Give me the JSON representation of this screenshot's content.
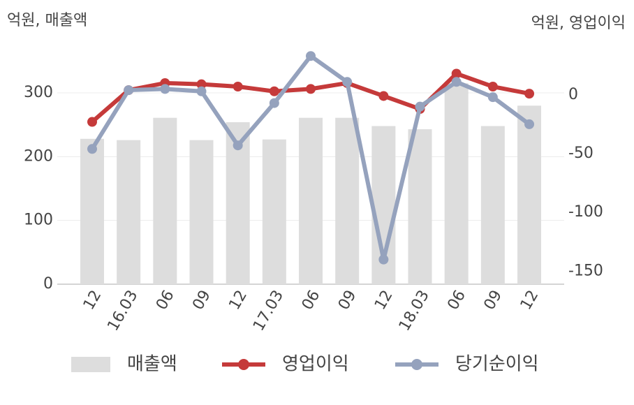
{
  "chart_data": {
    "type": "bar-line",
    "ylabel": "억원, 매출액",
    "y2label": "억원, 영업이익",
    "categories": [
      "12",
      "16.03",
      "06",
      "09",
      "12",
      "17.03",
      "06",
      "09",
      "12",
      "18.03",
      "06",
      "09",
      "12"
    ],
    "series": [
      {
        "name": "매출액",
        "type": "bar",
        "color": "#dddddd",
        "values": [
          228,
          226,
          261,
          226,
          254,
          227,
          261,
          261,
          248,
          243,
          315,
          248,
          280
        ]
      },
      {
        "name": "영업이익",
        "type": "line",
        "axis": "y2",
        "color": "#c53a3a",
        "values": [
          -23,
          4,
          10,
          9,
          7,
          3,
          5,
          10,
          -1,
          -12,
          18,
          7,
          1
        ]
      },
      {
        "name": "당기순이익",
        "type": "line",
        "axis": "y2",
        "color": "#95a2bd",
        "values": [
          -46,
          4,
          5,
          3,
          -43,
          -7,
          33,
          11,
          -140,
          -10,
          11,
          -2,
          -25
        ]
      }
    ],
    "ylim": [
      0,
      380
    ],
    "yticks": [
      0,
      100,
      200,
      300
    ],
    "y2lim": [
      -161,
      45
    ],
    "y2ticks": [
      0,
      -50,
      -100,
      -150
    ],
    "grid": true,
    "legend": "bottom"
  }
}
